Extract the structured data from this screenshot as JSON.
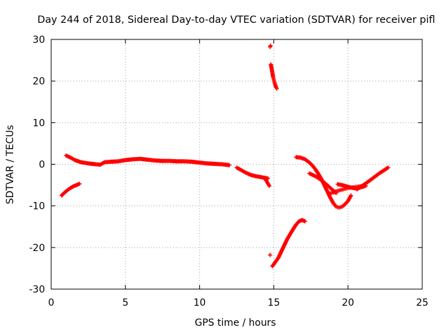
{
  "chart_data": {
    "type": "scatter",
    "title": "Day 244 of 2018, Sidereal Day-to-day VTEC variation (SDTVAR) for receiver pifl",
    "xlabel": "GPS time / hours",
    "ylabel": "SDTVAR / TECUs",
    "xlim": [
      0,
      25
    ],
    "ylim": [
      -30,
      30
    ],
    "xticks": [
      "0",
      "5",
      "10",
      "15",
      "20",
      "25"
    ],
    "yticks": [
      "30",
      "20",
      "10",
      "0",
      "-10",
      "-20",
      "-30"
    ],
    "grid": true,
    "marker_color": "#ff0000",
    "series": [
      {
        "x": [
          0.7,
          0.9,
          1.1,
          1.3,
          1.5,
          1.7,
          1.9
        ],
        "y": [
          -7.5,
          -6.8,
          -6.2,
          -5.7,
          -5.3,
          -5.0,
          -4.7
        ]
      },
      {
        "x": [
          1.0,
          1.3,
          1.6,
          2.0,
          2.5,
          3.0,
          3.3,
          3.6,
          4.0,
          4.5,
          5.0,
          5.5,
          6.0,
          6.5,
          7.0,
          7.5,
          8.0,
          8.5,
          9.0,
          9.5,
          10.0,
          10.5,
          11.0,
          11.5,
          12.0
        ],
        "y": [
          2.1,
          1.6,
          1.0,
          0.5,
          0.2,
          0.0,
          -0.1,
          0.5,
          0.6,
          0.7,
          1.0,
          1.2,
          1.3,
          1.1,
          0.9,
          0.8,
          0.8,
          0.7,
          0.7,
          0.6,
          0.4,
          0.2,
          0.1,
          0.0,
          -0.2
        ]
      },
      {
        "x": [
          12.5,
          12.8,
          13.1,
          13.4,
          13.7,
          14.0,
          14.3,
          14.6
        ],
        "y": [
          -0.8,
          -1.4,
          -2.0,
          -2.5,
          -2.8,
          -3.0,
          -3.2,
          -3.4
        ]
      },
      {
        "x": [
          14.4,
          14.5,
          14.6,
          14.7
        ],
        "y": [
          -3.5,
          -4.0,
          -4.6,
          -5.2
        ]
      },
      {
        "x": [
          14.75,
          14.78
        ],
        "y": [
          28.2,
          28.5
        ]
      },
      {
        "x": [
          14.8,
          14.85,
          14.9,
          14.95,
          15.0,
          15.05,
          15.1,
          15.15,
          15.2
        ],
        "y": [
          24.0,
          23.0,
          22.0,
          21.0,
          20.3,
          19.6,
          19.0,
          18.5,
          18.2
        ]
      },
      {
        "x": [
          14.75
        ],
        "y": [
          -21.8
        ]
      },
      {
        "x": [
          14.9,
          15.1,
          15.3,
          15.5,
          15.7,
          15.9,
          16.1,
          16.3,
          16.5,
          16.7,
          16.9,
          17.1
        ],
        "y": [
          -24.5,
          -23.5,
          -22.5,
          -21.0,
          -19.5,
          -18.0,
          -16.8,
          -15.6,
          -14.5,
          -13.7,
          -13.4,
          -13.7
        ]
      },
      {
        "x": [
          16.5,
          16.8,
          17.1,
          17.4,
          17.6,
          17.8,
          18.0,
          18.2,
          18.4,
          18.6,
          18.8,
          19.0,
          19.2,
          19.4,
          19.6,
          19.8,
          20.0,
          20.2
        ],
        "y": [
          1.7,
          1.6,
          1.2,
          0.4,
          -0.3,
          -1.2,
          -2.3,
          -3.5,
          -5.0,
          -6.5,
          -8.0,
          -9.3,
          -10.2,
          -10.4,
          -10.2,
          -9.6,
          -8.8,
          -7.5
        ]
      },
      {
        "x": [
          17.4,
          17.7,
          18.0,
          18.3,
          18.6,
          18.9,
          19.2
        ],
        "y": [
          -2.2,
          -2.7,
          -3.3,
          -4.1,
          -5.0,
          -6.0,
          -6.9
        ]
      },
      {
        "x": [
          18.8,
          19.0,
          19.2,
          19.4,
          19.6,
          19.8,
          20.0,
          20.2,
          20.4,
          20.6,
          20.8,
          21.0,
          21.2
        ],
        "y": [
          -7.0,
          -6.8,
          -6.5,
          -6.3,
          -6.1,
          -5.9,
          -5.7,
          -5.6,
          -5.5,
          -5.4,
          -5.3,
          -5.2,
          -5.2
        ]
      },
      {
        "x": [
          19.3,
          19.6,
          19.9,
          20.2,
          20.5,
          20.8,
          21.1
        ],
        "y": [
          -4.8,
          -5.0,
          -5.3,
          -5.6,
          -5.8,
          -5.6,
          -5.3
        ]
      },
      {
        "x": [
          20.6,
          20.9,
          21.2,
          21.5,
          21.8,
          22.1,
          22.4,
          22.7
        ],
        "y": [
          -6.0,
          -5.3,
          -4.6,
          -3.8,
          -3.0,
          -2.2,
          -1.5,
          -0.8
        ]
      }
    ]
  }
}
